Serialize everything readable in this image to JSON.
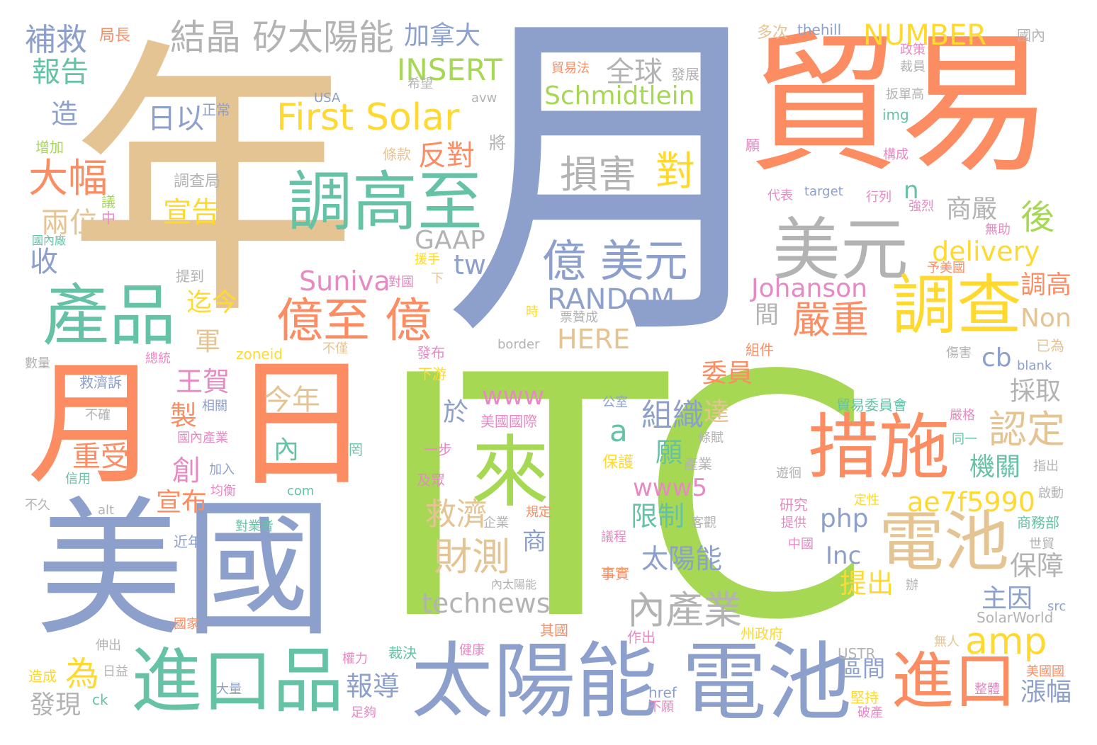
{
  "palette": {
    "orange": "#fc8d62",
    "tan": "#e5c494",
    "blue": "#8da0cb",
    "green": "#a6d854",
    "teal": "#66c2a5",
    "yellow": "#ffd92f",
    "pink": "#e78ac3",
    "gray": "#b3b3b3"
  },
  "words": [
    {
      "text": "ITC",
      "color": "#a6d854"
    },
    {
      "text": "月",
      "color": "#8da0cb"
    },
    {
      "text": "年",
      "color": "#e5c494"
    },
    {
      "text": "貿易",
      "color": "#fc8d62"
    },
    {
      "text": "美國",
      "color": "#8da0cb"
    },
    {
      "text": "月",
      "color": "#fc8d62"
    },
    {
      "text": "日",
      "color": "#fc8d62"
    },
    {
      "text": "電池",
      "color": "#8da0cb"
    },
    {
      "text": "太陽能",
      "color": "#8da0cb"
    },
    {
      "text": "進口品",
      "color": "#66c2a5"
    },
    {
      "text": "調高至",
      "color": "#66c2a5"
    },
    {
      "text": "產品",
      "color": "#66c2a5"
    },
    {
      "text": "措施",
      "color": "#fc8d62"
    },
    {
      "text": "電池",
      "color": "#e5c494"
    },
    {
      "text": "美元",
      "color": "#b3b3b3"
    },
    {
      "text": "調查",
      "color": "#ffd92f"
    },
    {
      "text": "進口",
      "color": "#fc8d62"
    },
    {
      "text": "來",
      "color": "#a6d854"
    },
    {
      "text": "First Solar",
      "color": "#ffd92f"
    },
    {
      "text": "億至 億",
      "color": "#fc8d62"
    },
    {
      "text": "億 美元",
      "color": "#8da0cb"
    },
    {
      "text": "結晶 矽太陽能",
      "color": "#b3b3b3"
    },
    {
      "text": "損害",
      "color": "#b3b3b3"
    },
    {
      "text": "對",
      "color": "#ffd92f"
    },
    {
      "text": "內產業",
      "color": "#b3b3b3"
    },
    {
      "text": "財測",
      "color": "#e5c494"
    },
    {
      "text": "救濟",
      "color": "#e5c494"
    },
    {
      "text": "嚴重",
      "color": "#fc8d62"
    },
    {
      "text": "認定",
      "color": "#e5c494"
    },
    {
      "text": "大幅",
      "color": "#fc8d62"
    },
    {
      "text": "今年",
      "color": "#e5c494"
    },
    {
      "text": "組織",
      "color": "#8da0cb"
    },
    {
      "text": "ae7f5990",
      "color": "#ffd92f"
    },
    {
      "text": "amp",
      "color": "#ffd92f"
    },
    {
      "text": "technews",
      "color": "#b3b3b3"
    },
    {
      "text": "RANDOM",
      "color": "#8da0cb"
    },
    {
      "text": "Schmidtlein",
      "color": "#a6d854"
    },
    {
      "text": "INSERT",
      "color": "#a6d854"
    },
    {
      "text": "NUMBER",
      "color": "#ffd92f"
    },
    {
      "text": "加拿大",
      "color": "#8da0cb"
    },
    {
      "text": "全球",
      "color": "#b3b3b3"
    },
    {
      "text": "補救",
      "color": "#8da0cb"
    },
    {
      "text": "報告",
      "color": "#66c2a5"
    },
    {
      "text": "造",
      "color": "#8da0cb"
    },
    {
      "text": "日以",
      "color": "#8da0cb"
    },
    {
      "text": "反對",
      "color": "#fc8d62"
    },
    {
      "text": "宣告",
      "color": "#ffd92f"
    },
    {
      "text": "兩位",
      "color": "#e5c494"
    },
    {
      "text": "收",
      "color": "#8da0cb"
    },
    {
      "text": "GAAP",
      "color": "#b3b3b3"
    },
    {
      "text": "Suniva",
      "color": "#e78ac3"
    },
    {
      "text": "tw",
      "color": "#8da0cb"
    },
    {
      "text": "Johanson",
      "color": "#e78ac3"
    },
    {
      "text": "delivery",
      "color": "#ffd92f"
    },
    {
      "text": "商嚴",
      "color": "#b3b3b3"
    },
    {
      "text": "後",
      "color": "#a6d854"
    },
    {
      "text": "n",
      "color": "#66c2a5"
    },
    {
      "text": "調高",
      "color": "#fc8d62"
    },
    {
      "text": "Non",
      "color": "#e5c494"
    },
    {
      "text": "間",
      "color": "#b3b3b3"
    },
    {
      "text": "cb",
      "color": "#8da0cb"
    },
    {
      "text": "HERE",
      "color": "#e5c494"
    },
    {
      "text": "迄今",
      "color": "#ffd92f"
    },
    {
      "text": "軍",
      "color": "#e5c494"
    },
    {
      "text": "王賀",
      "color": "#e78ac3"
    },
    {
      "text": "製",
      "color": "#fc8d62"
    },
    {
      "text": "重受",
      "color": "#fc8d62"
    },
    {
      "text": "創",
      "color": "#e78ac3"
    },
    {
      "text": "宣布",
      "color": "#fc8d62"
    },
    {
      "text": "www",
      "color": "#e78ac3"
    },
    {
      "text": "於",
      "color": "#8da0cb"
    },
    {
      "text": "a",
      "color": "#66c2a5"
    },
    {
      "text": "達",
      "color": "#e5c494"
    },
    {
      "text": "委員",
      "color": "#fc8d62"
    },
    {
      "text": "採取",
      "color": "#b3b3b3"
    },
    {
      "text": "機關",
      "color": "#66c2a5"
    },
    {
      "text": "內",
      "color": "#66c2a5"
    },
    {
      "text": "願",
      "color": "#66c2a5"
    },
    {
      "text": "www5",
      "color": "#e78ac3"
    },
    {
      "text": "限制",
      "color": "#66c2a5"
    },
    {
      "text": "商",
      "color": "#8da0cb"
    },
    {
      "text": "php",
      "color": "#8da0cb"
    },
    {
      "text": "Inc",
      "color": "#8da0cb"
    },
    {
      "text": "太陽能",
      "color": "#8da0cb"
    },
    {
      "text": "提出",
      "color": "#ffd92f"
    },
    {
      "text": "保障",
      "color": "#b3b3b3"
    },
    {
      "text": "主因",
      "color": "#8da0cb"
    },
    {
      "text": "為",
      "color": "#ffd92f"
    },
    {
      "text": "報導",
      "color": "#8da0cb"
    },
    {
      "text": "區間",
      "color": "#8da0cb"
    },
    {
      "text": "漲幅",
      "color": "#8da0cb"
    },
    {
      "text": "發現",
      "color": "#b3b3b3"
    },
    {
      "text": "局長",
      "color": "#fc8d62"
    },
    {
      "text": "正常",
      "color": "#8da0cb"
    },
    {
      "text": "USA",
      "color": "#8da0cb"
    },
    {
      "text": "avw",
      "color": "#b3b3b3"
    },
    {
      "text": "希望",
      "color": "#b3b3b3"
    },
    {
      "text": "增加",
      "color": "#a6d854"
    },
    {
      "text": "條款",
      "color": "#e5c494"
    },
    {
      "text": "將",
      "color": "#b3b3b3"
    },
    {
      "text": "調查局",
      "color": "#b3b3b3"
    },
    {
      "text": "貿易法",
      "color": "#fc8d62"
    },
    {
      "text": "發展",
      "color": "#b3b3b3"
    },
    {
      "text": "多次",
      "color": "#e5c494"
    },
    {
      "text": "thehill",
      "color": "#8da0cb"
    },
    {
      "text": "國內",
      "color": "#b3b3b3"
    },
    {
      "text": "政策",
      "color": "#e78ac3"
    },
    {
      "text": "裁員",
      "color": "#b3b3b3"
    },
    {
      "text": "扳單高",
      "color": "#b3b3b3"
    },
    {
      "text": "img",
      "color": "#66c2a5"
    },
    {
      "text": "願",
      "color": "#e78ac3"
    },
    {
      "text": "構成",
      "color": "#e78ac3"
    },
    {
      "text": "代表",
      "color": "#e78ac3"
    },
    {
      "text": "target",
      "color": "#8da0cb"
    },
    {
      "text": "行列",
      "color": "#e78ac3"
    },
    {
      "text": "強烈",
      "color": "#e78ac3"
    },
    {
      "text": "無助",
      "color": "#e78ac3"
    },
    {
      "text": "予美國",
      "color": "#fc8d62"
    },
    {
      "text": "國內廠",
      "color": "#66c2a5"
    },
    {
      "text": "中",
      "color": "#e78ac3"
    },
    {
      "text": "議",
      "color": "#a6d854"
    },
    {
      "text": "援手",
      "color": "#ffd92f"
    },
    {
      "text": "下",
      "color": "#e5c494"
    },
    {
      "text": "提到",
      "color": "#b3b3b3"
    },
    {
      "text": "對國",
      "color": "#e78ac3"
    },
    {
      "text": "時",
      "color": "#ffd92f"
    },
    {
      "text": "票贊成",
      "color": "#b3b3b3"
    },
    {
      "text": "border",
      "color": "#b3b3b3"
    },
    {
      "text": "zoneid",
      "color": "#ffd92f"
    },
    {
      "text": "不僅",
      "color": "#e5c494"
    },
    {
      "text": "發布",
      "color": "#e78ac3"
    },
    {
      "text": "組件",
      "color": "#fc8d62"
    },
    {
      "text": "已為",
      "color": "#e5c494"
    },
    {
      "text": "傷害",
      "color": "#b3b3b3"
    },
    {
      "text": "blank",
      "color": "#8da0cb"
    },
    {
      "text": "數量",
      "color": "#b3b3b3"
    },
    {
      "text": "總統",
      "color": "#e78ac3"
    },
    {
      "text": "下游",
      "color": "#ffd92f"
    },
    {
      "text": "救濟訴",
      "color": "#8da0cb"
    },
    {
      "text": "不確",
      "color": "#b3b3b3"
    },
    {
      "text": "相關",
      "color": "#8da0cb"
    },
    {
      "text": "國內產業",
      "color": "#e78ac3"
    },
    {
      "text": "公室",
      "color": "#8da0cb"
    },
    {
      "text": "美國國際",
      "color": "#e78ac3"
    },
    {
      "text": "貿易委員會",
      "color": "#66c2a5"
    },
    {
      "text": "嚴格",
      "color": "#e78ac3"
    },
    {
      "text": "同一",
      "color": "#66c2a5"
    },
    {
      "text": "一步",
      "color": "#e78ac3"
    },
    {
      "text": "罔",
      "color": "#66c2a5"
    },
    {
      "text": "保護",
      "color": "#ffd92f"
    },
    {
      "text": "產業",
      "color": "#b3b3b3"
    },
    {
      "text": "條賦",
      "color": "#b3b3b3"
    },
    {
      "text": "遊徊",
      "color": "#b3b3b3"
    },
    {
      "text": "指出",
      "color": "#b3b3b3"
    },
    {
      "text": "加入",
      "color": "#8da0cb"
    },
    {
      "text": "信用",
      "color": "#66c2a5"
    },
    {
      "text": "均衡",
      "color": "#e78ac3"
    },
    {
      "text": "及眾",
      "color": "#e78ac3"
    },
    {
      "text": "com",
      "color": "#66c2a5"
    },
    {
      "text": "啟動",
      "color": "#b3b3b3"
    },
    {
      "text": "不久",
      "color": "#b3b3b3"
    },
    {
      "text": "alt",
      "color": "#b3b3b3"
    },
    {
      "text": "企業",
      "color": "#b3b3b3"
    },
    {
      "text": "規定",
      "color": "#fc8d62"
    },
    {
      "text": "客觀",
      "color": "#b3b3b3"
    },
    {
      "text": "研究",
      "color": "#e78ac3"
    },
    {
      "text": "定性",
      "color": "#ffd92f"
    },
    {
      "text": "商務部",
      "color": "#66c2a5"
    },
    {
      "text": "對業者",
      "color": "#66c2a5"
    },
    {
      "text": "近年",
      "color": "#8da0cb"
    },
    {
      "text": "議程",
      "color": "#e78ac3"
    },
    {
      "text": "提供",
      "color": "#e78ac3"
    },
    {
      "text": "中國",
      "color": "#e78ac3"
    },
    {
      "text": "世貿",
      "color": "#b3b3b3"
    },
    {
      "text": "事實",
      "color": "#fc8d62"
    },
    {
      "text": "內太陽能",
      "color": "#b3b3b3"
    },
    {
      "text": "辦",
      "color": "#b3b3b3"
    },
    {
      "text": "src",
      "color": "#8da0cb"
    },
    {
      "text": "國家",
      "color": "#fc8d62"
    },
    {
      "text": "其國",
      "color": "#fc8d62"
    },
    {
      "text": "SolarWorld",
      "color": "#b3b3b3"
    },
    {
      "text": "伸出",
      "color": "#b3b3b3"
    },
    {
      "text": "作出",
      "color": "#e78ac3"
    },
    {
      "text": "州政府",
      "color": "#ffd92f"
    },
    {
      "text": "無人",
      "color": "#e5c494"
    },
    {
      "text": "USTR",
      "color": "#b3b3b3"
    },
    {
      "text": "裁決",
      "color": "#66c2a5"
    },
    {
      "text": "健康",
      "color": "#e78ac3"
    },
    {
      "text": "權力",
      "color": "#e78ac3"
    },
    {
      "text": "美國國",
      "color": "#fc8d62"
    },
    {
      "text": "造成",
      "color": "#ffd92f"
    },
    {
      "text": "日益",
      "color": "#b3b3b3"
    },
    {
      "text": "大量",
      "color": "#8da0cb"
    },
    {
      "text": "href",
      "color": "#8da0cb"
    },
    {
      "text": "不願",
      "color": "#e78ac3"
    },
    {
      "text": "堅持",
      "color": "#ffd92f"
    },
    {
      "text": "破產",
      "color": "#e78ac3"
    },
    {
      "text": "整體",
      "color": "#e78ac3"
    },
    {
      "text": "ck",
      "color": "#66c2a5"
    },
    {
      "text": "足夠",
      "color": "#e78ac3"
    }
  ]
}
